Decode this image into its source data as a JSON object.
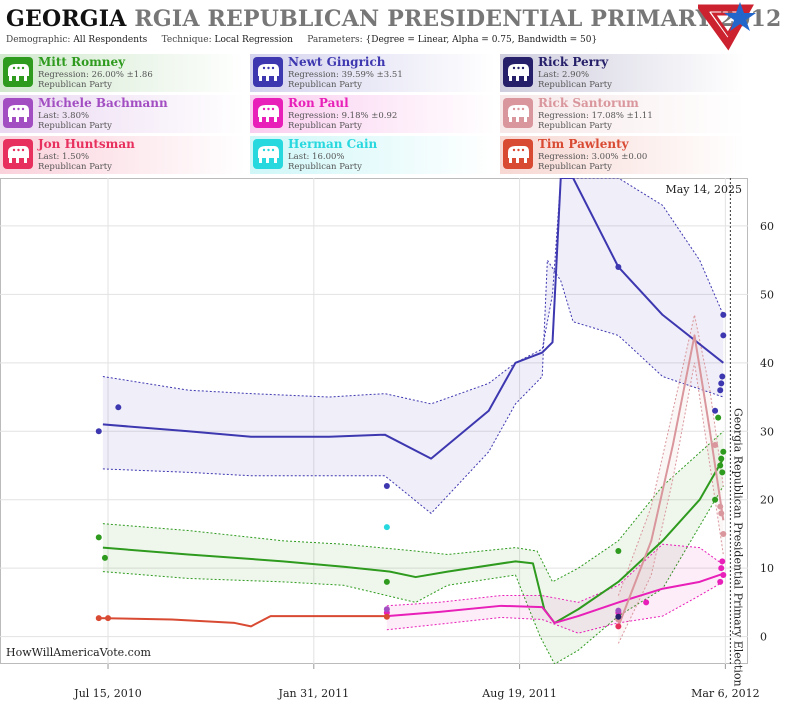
{
  "header": {
    "state": "GEORGIA",
    "title_rest": "RGIA REPUBLICAN PRESIDENTIAL PRIMARY 2012",
    "demographic_label": "Demographic:",
    "demographic_value": "All Respondents",
    "technique_label": "Technique:",
    "technique_value": "Local Regression",
    "parameters_label": "Parameters:",
    "parameters_value": "{Degree = Linear, Alpha = 0.75, Bandwidth = 50}"
  },
  "candidates": [
    {
      "name": "Mitt Romney",
      "stat": "Regression: 26.00% ±1.86",
      "party": "Republican Party",
      "color": "#2e9a1e"
    },
    {
      "name": "Newt Gingrich",
      "stat": "Regression: 39.59% ±3.51",
      "party": "Republican Party",
      "color": "#3d37b0"
    },
    {
      "name": "Rick Perry",
      "stat": "Last: 2.90%",
      "party": "Republican Party",
      "color": "#26206a"
    },
    {
      "name": "Michele Bachmann",
      "stat": "Last: 3.80%",
      "party": "Republican Party",
      "color": "#a24ec2"
    },
    {
      "name": "Ron Paul",
      "stat": "Regression: 9.18% ±0.92",
      "party": "Republican Party",
      "color": "#e81fb8"
    },
    {
      "name": "Rick Santorum",
      "stat": "Regression: 17.08% ±1.11",
      "party": "Republican Party",
      "color": "#d9969c"
    },
    {
      "name": "Jon Huntsman",
      "stat": "Last: 1.50%",
      "party": "Republican Party",
      "color": "#e8305e"
    },
    {
      "name": "Herman Cain",
      "stat": "Last: 16.00%",
      "party": "Republican Party",
      "color": "#27d8de"
    },
    {
      "name": "Tim Pawlenty",
      "stat": "Regression: 3.00% ±0.00",
      "party": "Republican Party",
      "color": "#d94a33"
    }
  ],
  "chart_data": {
    "type": "line",
    "x_type": "date",
    "ylim": [
      -4,
      67
    ],
    "xlim": [
      "2010-04-01",
      "2012-03-28"
    ],
    "x_ticks": [
      {
        "date": "2010-07-15",
        "label": "Jul 15, 2010"
      },
      {
        "date": "2011-01-31",
        "label": "Jan 31, 2011"
      },
      {
        "date": "2011-08-19",
        "label": "Aug 19, 2011"
      },
      {
        "date": "2012-03-06",
        "label": "Mar 6, 2012"
      }
    ],
    "y_ticks": [
      0,
      10,
      20,
      30,
      40,
      50,
      60
    ],
    "grid": true,
    "current_date_label": "May 14, 2025",
    "election_date": "2012-03-06",
    "election_label": "Georgia Republican Presidential Primary Election",
    "watermark": "HowWillAmericaVote.com",
    "series": [
      {
        "name": "Newt Gingrich",
        "color": "#3d37b0",
        "line": [
          [
            "2010-07-10",
            31
          ],
          [
            "2010-10-01",
            30
          ],
          [
            "2010-12-01",
            29.2
          ],
          [
            "2011-02-15",
            29.2
          ],
          [
            "2011-04-10",
            29.5
          ],
          [
            "2011-05-25",
            26
          ],
          [
            "2011-07-20",
            33
          ],
          [
            "2011-08-15",
            40
          ],
          [
            "2011-09-10",
            41.5
          ],
          [
            "2011-09-20",
            43
          ],
          [
            "2011-09-28",
            70
          ],
          [
            "2011-10-10",
            70
          ],
          [
            "2011-11-23",
            54
          ],
          [
            "2012-01-05",
            47
          ],
          [
            "2012-03-04",
            40
          ]
        ],
        "band_upper": [
          [
            "2010-07-10",
            38
          ],
          [
            "2010-10-01",
            36
          ],
          [
            "2010-12-01",
            35.5
          ],
          [
            "2011-02-15",
            35
          ],
          [
            "2011-04-10",
            35.5
          ],
          [
            "2011-05-25",
            34
          ],
          [
            "2011-07-20",
            37
          ],
          [
            "2011-08-15",
            40
          ],
          [
            "2011-09-10",
            42
          ],
          [
            "2011-09-20",
            50
          ],
          [
            "2011-09-28",
            70
          ],
          [
            "2011-10-10",
            70
          ],
          [
            "2011-11-23",
            68
          ],
          [
            "2012-01-05",
            63
          ],
          [
            "2012-02-10",
            55
          ],
          [
            "2012-03-04",
            47
          ]
        ],
        "band_lower": [
          [
            "2010-07-10",
            24.5
          ],
          [
            "2010-10-01",
            24
          ],
          [
            "2010-12-01",
            23.5
          ],
          [
            "2011-02-15",
            23.5
          ],
          [
            "2011-04-10",
            23.5
          ],
          [
            "2011-05-25",
            18
          ],
          [
            "2011-07-20",
            27
          ],
          [
            "2011-08-15",
            34
          ],
          [
            "2011-09-10",
            38
          ],
          [
            "2011-09-15",
            55
          ],
          [
            "2011-09-28",
            52
          ],
          [
            "2011-10-10",
            46
          ],
          [
            "2011-11-23",
            44
          ],
          [
            "2012-01-05",
            38
          ],
          [
            "2012-03-04",
            35
          ]
        ],
        "points": [
          [
            "2010-07-06",
            30
          ],
          [
            "2010-07-25",
            33.5
          ],
          [
            "2011-04-12",
            22
          ],
          [
            "2011-11-23",
            54
          ],
          [
            "2012-02-25",
            33
          ],
          [
            "2012-03-01",
            36
          ],
          [
            "2012-03-02",
            37
          ],
          [
            "2012-03-03",
            38
          ],
          [
            "2012-03-04",
            47
          ],
          [
            "2012-03-04",
            44
          ]
        ]
      },
      {
        "name": "Mitt Romney",
        "color": "#2e9a1e",
        "line": [
          [
            "2010-07-10",
            13
          ],
          [
            "2010-10-01",
            12
          ],
          [
            "2011-01-01",
            11
          ],
          [
            "2011-03-01",
            10.2
          ],
          [
            "2011-04-15",
            9.5
          ],
          [
            "2011-05-10",
            8.7
          ],
          [
            "2011-06-10",
            9.5
          ],
          [
            "2011-08-15",
            11
          ],
          [
            "2011-09-01",
            10.7
          ],
          [
            "2011-09-12",
            4
          ],
          [
            "2011-09-22",
            2
          ],
          [
            "2011-10-15",
            4
          ],
          [
            "2011-11-23",
            8
          ],
          [
            "2012-01-05",
            14
          ],
          [
            "2012-02-10",
            20
          ],
          [
            "2012-03-04",
            26
          ]
        ],
        "band_upper": [
          [
            "2010-07-10",
            16.5
          ],
          [
            "2010-10-01",
            15.5
          ],
          [
            "2011-01-01",
            14
          ],
          [
            "2011-03-01",
            13.5
          ],
          [
            "2011-05-10",
            12.5
          ],
          [
            "2011-06-10",
            12
          ],
          [
            "2011-08-15",
            13
          ],
          [
            "2011-09-05",
            12.5
          ],
          [
            "2011-09-20",
            8
          ],
          [
            "2011-10-15",
            10
          ],
          [
            "2011-11-23",
            14
          ],
          [
            "2012-01-05",
            22
          ],
          [
            "2012-03-04",
            30
          ]
        ],
        "band_lower": [
          [
            "2010-07-10",
            9.5
          ],
          [
            "2010-10-01",
            8.5
          ],
          [
            "2011-01-01",
            8
          ],
          [
            "2011-03-01",
            7.5
          ],
          [
            "2011-05-10",
            5
          ],
          [
            "2011-06-10",
            7.5
          ],
          [
            "2011-08-15",
            9
          ],
          [
            "2011-09-08",
            0
          ],
          [
            "2011-09-22",
            -6
          ],
          [
            "2011-10-15",
            -2
          ],
          [
            "2011-11-23",
            3
          ],
          [
            "2012-01-05",
            7
          ],
          [
            "2012-03-04",
            22
          ]
        ],
        "points": [
          [
            "2010-07-06",
            14.5
          ],
          [
            "2010-07-12",
            11.5
          ],
          [
            "2011-04-12",
            8
          ],
          [
            "2011-11-23",
            12.5
          ],
          [
            "2012-02-25",
            20
          ],
          [
            "2012-02-28",
            32
          ],
          [
            "2012-03-01",
            25
          ],
          [
            "2012-03-02",
            26
          ],
          [
            "2012-03-03",
            24
          ],
          [
            "2012-03-04",
            27
          ]
        ]
      },
      {
        "name": "Ron Paul",
        "color": "#e81fb8",
        "line": [
          [
            "2011-04-12",
            3
          ],
          [
            "2011-06-01",
            3.6
          ],
          [
            "2011-08-01",
            4.5
          ],
          [
            "2011-09-10",
            4.3
          ],
          [
            "2011-09-22",
            2
          ],
          [
            "2011-10-15",
            3
          ],
          [
            "2011-11-23",
            5
          ],
          [
            "2012-01-05",
            7
          ],
          [
            "2012-02-10",
            8
          ],
          [
            "2012-03-04",
            9.2
          ]
        ],
        "band_upper": [
          [
            "2011-04-12",
            4.5
          ],
          [
            "2011-06-01",
            5
          ],
          [
            "2011-08-01",
            6
          ],
          [
            "2011-09-10",
            6
          ],
          [
            "2011-10-15",
            5
          ],
          [
            "2011-11-23",
            7.5
          ],
          [
            "2012-01-05",
            13.5
          ],
          [
            "2012-02-10",
            13
          ],
          [
            "2012-03-04",
            10.5
          ]
        ],
        "band_lower": [
          [
            "2011-04-12",
            1
          ],
          [
            "2011-06-01",
            1.8
          ],
          [
            "2011-08-01",
            2.8
          ],
          [
            "2011-09-10",
            2.5
          ],
          [
            "2011-10-15",
            0.5
          ],
          [
            "2011-11-23",
            2
          ],
          [
            "2012-01-05",
            3
          ],
          [
            "2012-02-10",
            6
          ],
          [
            "2012-03-04",
            8
          ]
        ],
        "points": [
          [
            "2011-04-12",
            3.5
          ],
          [
            "2011-11-23",
            3.5
          ],
          [
            "2011-12-20",
            5
          ],
          [
            "2012-03-01",
            8
          ],
          [
            "2012-03-02",
            10
          ],
          [
            "2012-03-03",
            11
          ],
          [
            "2012-03-04",
            9
          ]
        ]
      },
      {
        "name": "Rick Santorum",
        "color": "#d9969c",
        "line": [
          [
            "2011-11-23",
            1.5
          ],
          [
            "2011-12-25",
            14
          ],
          [
            "2012-01-15",
            28
          ],
          [
            "2012-02-05",
            44
          ],
          [
            "2012-02-20",
            30
          ],
          [
            "2012-03-04",
            17
          ]
        ],
        "band_upper": [
          [
            "2011-11-23",
            6
          ],
          [
            "2011-12-25",
            19
          ],
          [
            "2012-01-15",
            33
          ],
          [
            "2012-02-05",
            47
          ],
          [
            "2012-02-20",
            36
          ],
          [
            "2012-03-04",
            22
          ]
        ],
        "band_lower": [
          [
            "2011-11-23",
            -1
          ],
          [
            "2011-12-25",
            9
          ],
          [
            "2012-01-15",
            23
          ],
          [
            "2012-02-05",
            40
          ],
          [
            "2012-02-20",
            25
          ],
          [
            "2012-03-04",
            12
          ]
        ],
        "points": [
          [
            "2011-11-23",
            2.5
          ],
          [
            "2012-02-25",
            28
          ],
          [
            "2012-03-01",
            19
          ],
          [
            "2012-03-02",
            18
          ],
          [
            "2012-03-04",
            15
          ]
        ]
      },
      {
        "name": "Tim Pawlenty",
        "color": "#d94a33",
        "line": [
          [
            "2010-07-06",
            2.7
          ],
          [
            "2010-09-15",
            2.5
          ],
          [
            "2010-11-15",
            2.0
          ],
          [
            "2010-12-01",
            1.5
          ],
          [
            "2010-12-20",
            3
          ],
          [
            "2011-04-12",
            3
          ]
        ],
        "points": [
          [
            "2010-07-06",
            2.7
          ],
          [
            "2010-07-15",
            2.7
          ],
          [
            "2011-04-12",
            2.9
          ]
        ]
      },
      {
        "name": "Herman Cain",
        "color": "#27d8de",
        "points": [
          [
            "2011-04-12",
            16
          ]
        ]
      },
      {
        "name": "Michele Bachmann",
        "color": "#a24ec2",
        "points": [
          [
            "2011-04-12",
            4
          ],
          [
            "2011-11-23",
            3.8
          ]
        ]
      },
      {
        "name": "Rick Perry",
        "color": "#26206a",
        "points": [
          [
            "2011-11-23",
            2.9
          ]
        ]
      },
      {
        "name": "Jon Huntsman",
        "color": "#e8305e",
        "points": [
          [
            "2011-11-23",
            1.5
          ]
        ]
      }
    ]
  }
}
